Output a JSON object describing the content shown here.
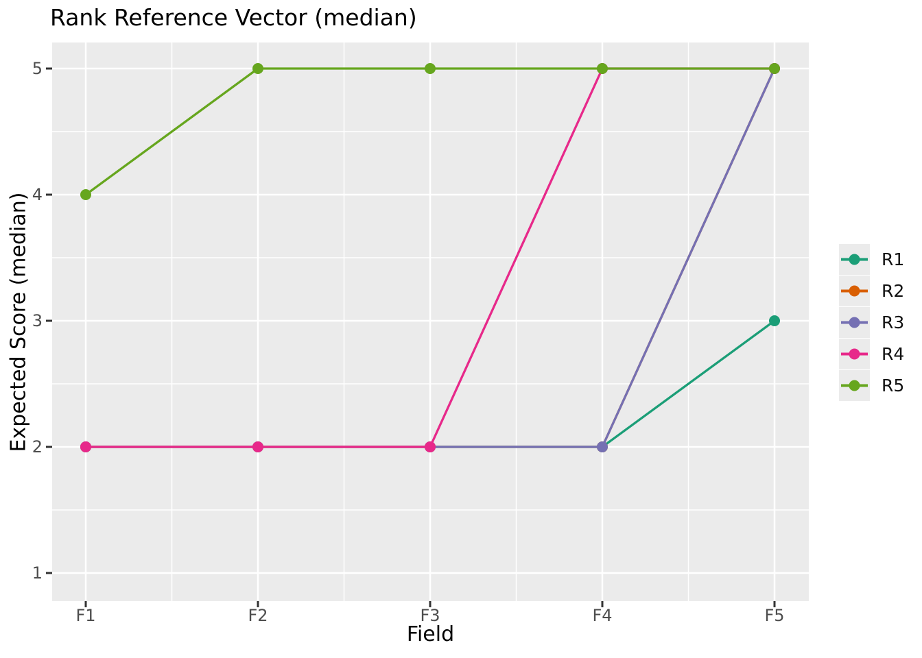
{
  "chart_data": {
    "type": "line",
    "title": "Rank Reference Vector (median)",
    "xlabel": "Field",
    "ylabel": "Expected Score (median)",
    "categories": [
      "F1",
      "F2",
      "F3",
      "F4",
      "F5"
    ],
    "yticks": [
      1,
      2,
      3,
      4,
      5
    ],
    "ylim": [
      0.78,
      5.21
    ],
    "grid": {
      "major": true,
      "minor": true
    },
    "legend_position": "right",
    "series": [
      {
        "name": "R1",
        "color": "#1b9e77",
        "values": [
          2,
          2,
          2,
          2,
          3
        ]
      },
      {
        "name": "R2",
        "color": "#d95f02",
        "values": [
          2,
          2,
          2,
          2,
          5
        ]
      },
      {
        "name": "R3",
        "color": "#7570b3",
        "values": [
          2,
          2,
          2,
          2,
          5
        ]
      },
      {
        "name": "R4",
        "color": "#e7298a",
        "values": [
          2,
          2,
          2,
          5,
          5
        ]
      },
      {
        "name": "R5",
        "color": "#66a61e",
        "values": [
          4,
          5,
          5,
          5,
          5
        ]
      }
    ],
    "style": {
      "panel_background": "#ebebeb",
      "grid_color": "#ffffff",
      "tick_color": "#333333",
      "tick_label_color": "#4d4d4d",
      "title_color": "#000000"
    }
  }
}
